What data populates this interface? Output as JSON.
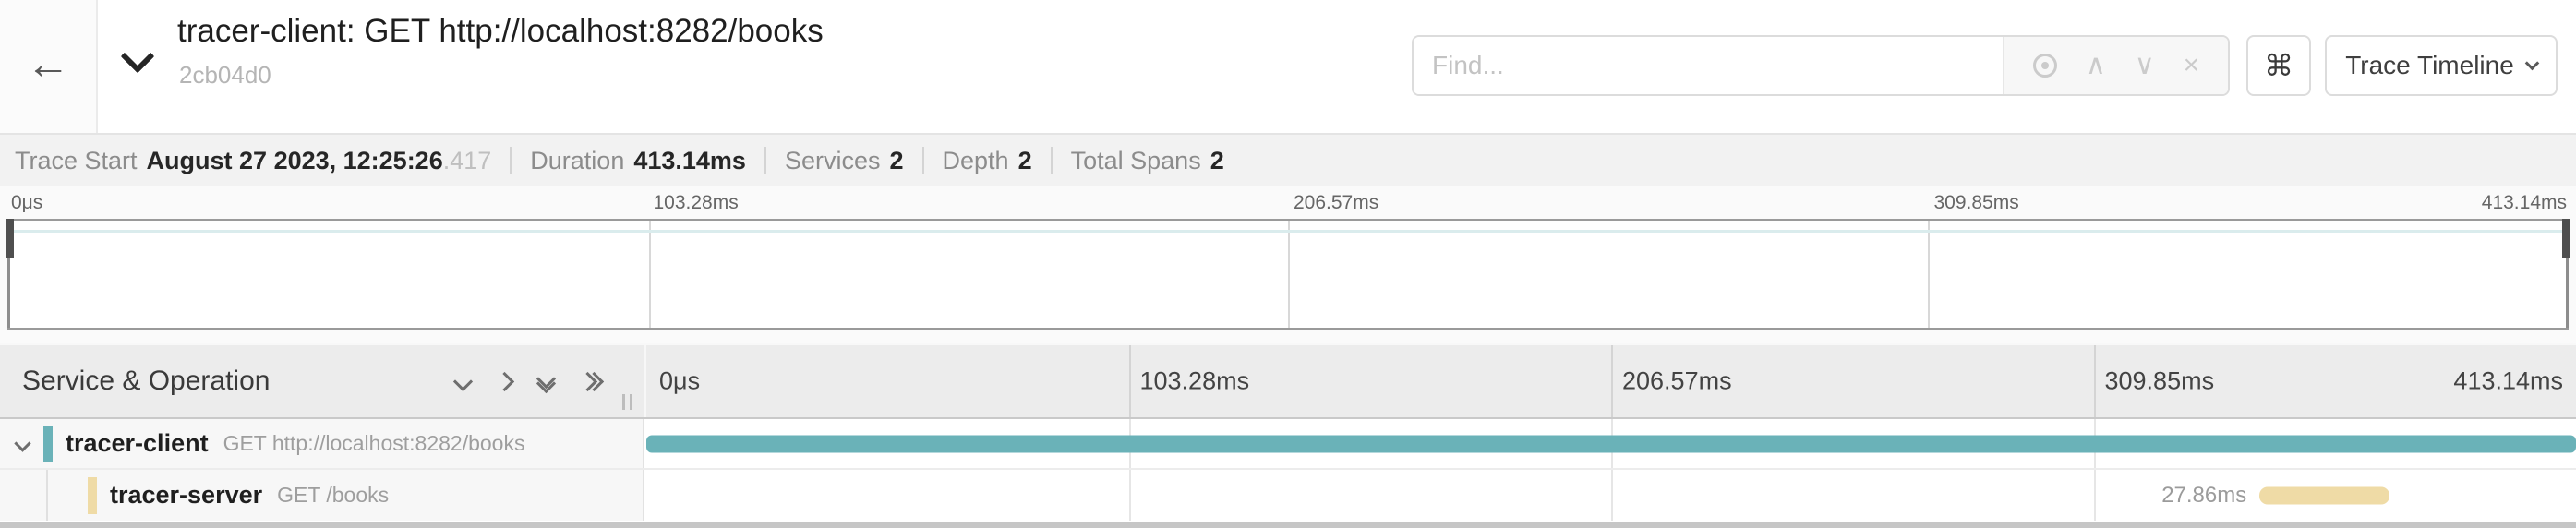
{
  "header": {
    "back_icon": "←",
    "title": "tracer-client: GET http://localhost:8282/books",
    "trace_id": "2cb04d0",
    "find_placeholder": "Find...",
    "find_prev_icon": "∧",
    "find_next_icon": "∨",
    "find_clear_icon": "×",
    "shortcut_key": "⌘",
    "view_menu_label": "Trace Timeline"
  },
  "summary": {
    "items": [
      {
        "label": "Trace Start",
        "value": "August 27 2023, 12:25:26",
        "suffix": ".417"
      },
      {
        "label": "Duration",
        "value": "413.14ms",
        "suffix": ""
      },
      {
        "label": "Services",
        "value": "2",
        "suffix": ""
      },
      {
        "label": "Depth",
        "value": "2",
        "suffix": ""
      },
      {
        "label": "Total Spans",
        "value": "2",
        "suffix": ""
      }
    ]
  },
  "timeline": {
    "ticks": [
      "0μs",
      "103.28ms",
      "206.57ms",
      "309.85ms",
      "413.14ms"
    ],
    "total_duration": "413.14ms"
  },
  "minimap": {
    "spans": [
      {
        "service": "tracer-client",
        "color": "#6ab2b8",
        "start_pct": 0,
        "width_pct": 100
      },
      {
        "service": "tracer-server",
        "color": "#efdba6",
        "start_pct": 83.3,
        "width_pct": 6.8
      }
    ]
  },
  "table": {
    "name_column_header": "Service & Operation",
    "rows": [
      {
        "service": "tracer-client",
        "operation": "GET http://localhost:8282/books",
        "color": "#6ab2b8",
        "duration_label": "",
        "bar": {
          "start_pct": 0,
          "width_pct": 100
        }
      },
      {
        "service": "tracer-server",
        "operation": "GET /books",
        "color": "#efdba6",
        "duration_label": "27.86ms",
        "bar": {
          "start_pct": 83.6,
          "width_pct": 6.75
        }
      }
    ]
  },
  "colors": {
    "client_teal": "#6ab2b8",
    "server_yellow": "#efdba6"
  }
}
